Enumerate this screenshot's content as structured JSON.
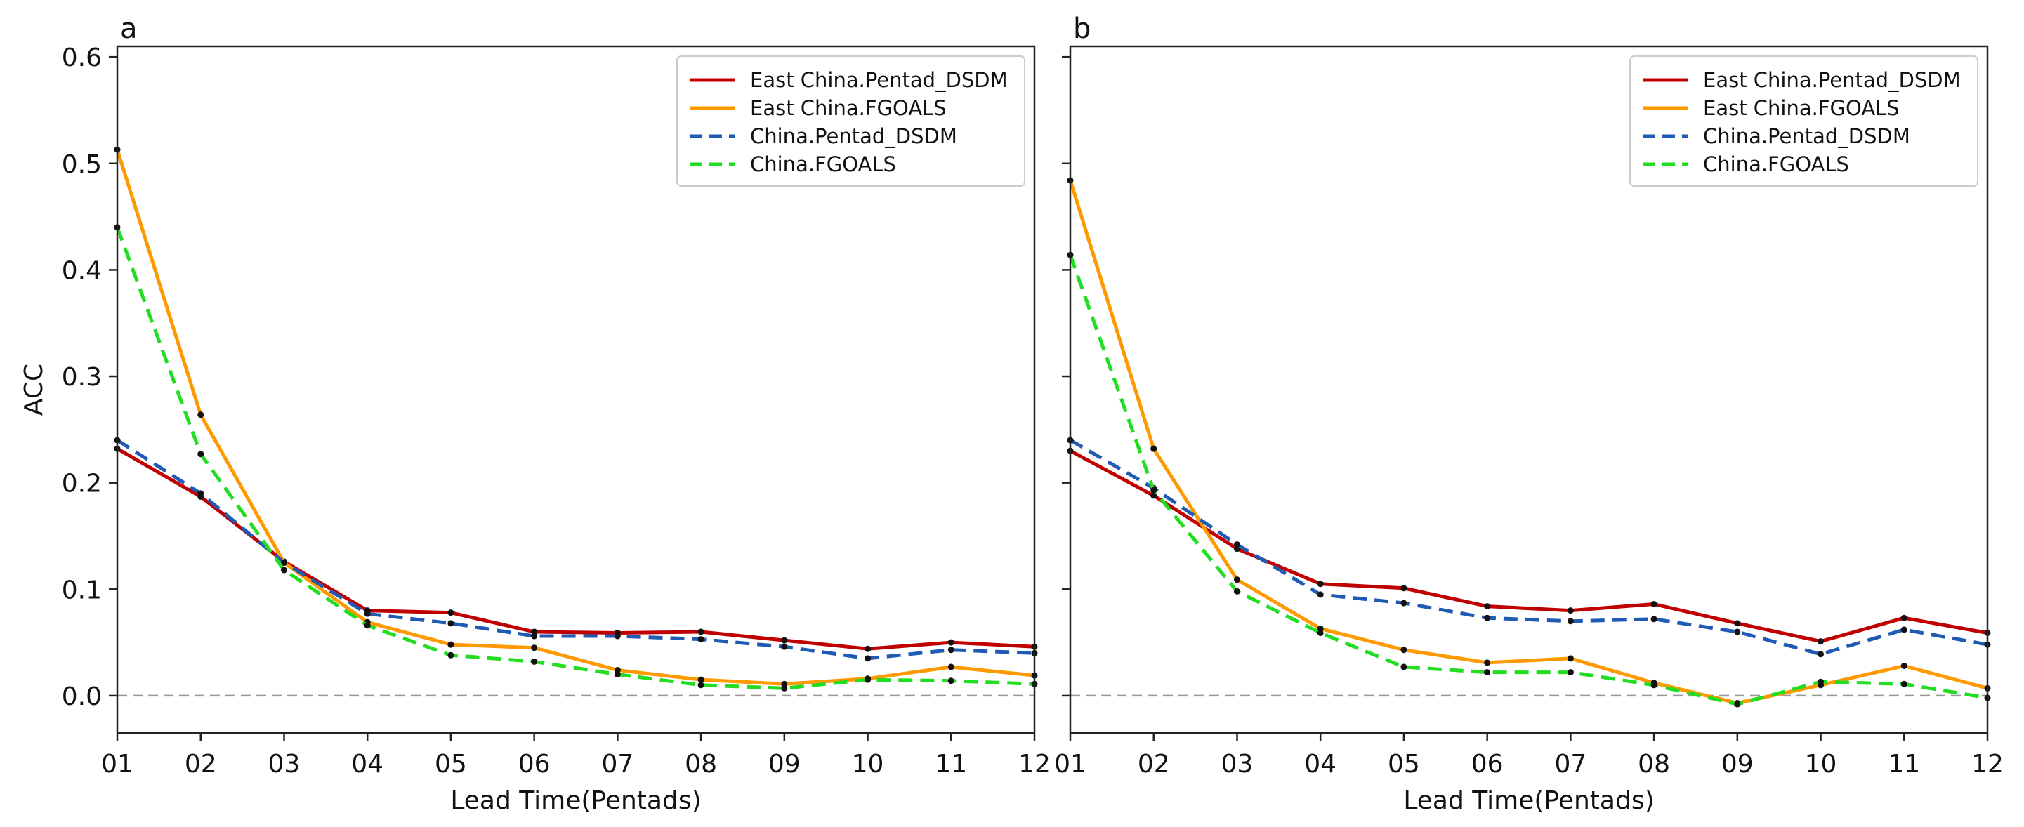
{
  "figure": {
    "layout": "two panels side by side, shared y axis"
  },
  "colors": {
    "east_pentad": "#c00000",
    "east_fgoals": "#ff9900",
    "china_pentad": "#1f5ab4",
    "china_fgoals": "#22dd22",
    "zero_line": "#999999",
    "marker": "#111111"
  },
  "chart_data": [
    {
      "type": "line",
      "panel_label": "a",
      "xlabel": "Lead Time(Pentads)",
      "ylabel": "ACC",
      "categories": [
        "01",
        "02",
        "03",
        "04",
        "05",
        "06",
        "07",
        "08",
        "09",
        "10",
        "11",
        "12"
      ],
      "ylim": [
        -0.035,
        0.61
      ],
      "yticks": [
        "0.0",
        "0.1",
        "0.2",
        "0.3",
        "0.4",
        "0.5",
        "0.6"
      ],
      "ytick_values": [
        0,
        0.1,
        0.2,
        0.3,
        0.4,
        0.5,
        0.6
      ],
      "reference_line": 0,
      "legend_position": "top-right",
      "series": [
        {
          "name": "East China.Pentad_DSDM",
          "style": "solid",
          "color": "#c00000",
          "values": [
            0.232,
            0.187,
            0.126,
            0.08,
            0.078,
            0.06,
            0.059,
            0.06,
            0.052,
            0.044,
            0.05,
            0.046
          ]
        },
        {
          "name": "East China.FGOALS",
          "style": "solid",
          "color": "#ff9900",
          "values": [
            0.513,
            0.264,
            0.125,
            0.069,
            0.048,
            0.045,
            0.024,
            0.015,
            0.011,
            0.016,
            0.027,
            0.019
          ]
        },
        {
          "name": "China.Pentad_DSDM",
          "style": "dashed",
          "color": "#1f5ab4",
          "values": [
            0.24,
            0.19,
            0.125,
            0.077,
            0.068,
            0.056,
            0.056,
            0.053,
            0.046,
            0.035,
            0.043,
            0.04
          ]
        },
        {
          "name": "China.FGOALS",
          "style": "dashed",
          "color": "#22dd22",
          "values": [
            0.44,
            0.227,
            0.118,
            0.066,
            0.038,
            0.032,
            0.02,
            0.01,
            0.007,
            0.015,
            0.014,
            0.011
          ]
        }
      ]
    },
    {
      "type": "line",
      "panel_label": "b",
      "xlabel": "Lead Time(Pentads)",
      "ylabel": "",
      "categories": [
        "01",
        "02",
        "03",
        "04",
        "05",
        "06",
        "07",
        "08",
        "09",
        "10",
        "11",
        "12"
      ],
      "ylim": [
        -0.035,
        0.61
      ],
      "yticks": [],
      "ytick_values": [
        0,
        0.1,
        0.2,
        0.3,
        0.4,
        0.5,
        0.6
      ],
      "reference_line": 0,
      "legend_position": "top-right",
      "series": [
        {
          "name": "East China.Pentad_DSDM",
          "style": "solid",
          "color": "#c00000",
          "values": [
            0.23,
            0.188,
            0.138,
            0.105,
            0.101,
            0.084,
            0.08,
            0.086,
            0.068,
            0.051,
            0.073,
            0.059
          ]
        },
        {
          "name": "East China.FGOALS",
          "style": "solid",
          "color": "#ff9900",
          "values": [
            0.484,
            0.232,
            0.109,
            0.063,
            0.043,
            0.031,
            0.035,
            0.012,
            -0.007,
            0.01,
            0.028,
            0.007
          ]
        },
        {
          "name": "China.Pentad_DSDM",
          "style": "dashed",
          "color": "#1f5ab4",
          "values": [
            0.24,
            0.195,
            0.142,
            0.095,
            0.087,
            0.073,
            0.07,
            0.072,
            0.06,
            0.039,
            0.062,
            0.048
          ]
        },
        {
          "name": "China.FGOALS",
          "style": "dashed",
          "color": "#22dd22",
          "values": [
            0.414,
            0.193,
            0.098,
            0.059,
            0.027,
            0.022,
            0.022,
            0.01,
            -0.008,
            0.013,
            0.011,
            -0.002
          ]
        }
      ]
    }
  ]
}
